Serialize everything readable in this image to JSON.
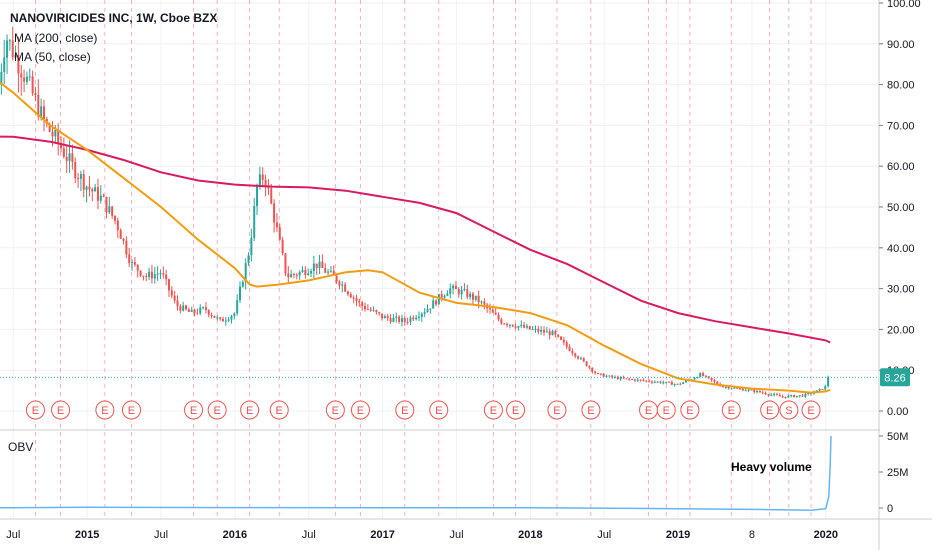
{
  "header": {
    "symbol_line": "NANOVIRICIDES INC, 1W, Cboe BZX",
    "ma200_label": "MA (200, close)",
    "ma50_label": "MA (50, close)"
  },
  "obv_panel": {
    "label": "OBV",
    "annotation": "Heavy volume"
  },
  "price_badge": {
    "value": "8.26"
  },
  "event_marker_letters": {
    "earnings": "E",
    "split": "S"
  },
  "colors": {
    "ma200": "#d81b60",
    "ma50": "#f39c12",
    "candle_up": "#26a69a",
    "candle_down": "#ef5350",
    "obv": "#64b5f6",
    "badge": "#26a69a",
    "event": "#ef5350"
  },
  "chart_data": {
    "type": "candlestick",
    "title": "NANOVIRICIDES INC, 1W, Cboe BZX",
    "x_tick_labels": [
      "Jul",
      "2015",
      "Jul",
      "2016",
      "Jul",
      "2017",
      "Jul",
      "2018",
      "Jul",
      "2019",
      "8",
      "2020"
    ],
    "price_axis": {
      "ticks": [
        "100.00",
        "90.00",
        "80.00",
        "70.00",
        "60.00",
        "50.00",
        "40.00",
        "30.00",
        "20.00",
        "10.00",
        "0.00"
      ],
      "ylim": [
        0,
        100
      ]
    },
    "obv_axis": {
      "ticks": [
        "50M",
        "25M",
        "0"
      ],
      "ylim": [
        -5,
        52
      ]
    },
    "price_path": [
      [
        2014.4,
        80
      ],
      [
        2014.45,
        92
      ],
      [
        2014.5,
        88
      ],
      [
        2014.58,
        82
      ],
      [
        2014.65,
        76
      ],
      [
        2014.72,
        70
      ],
      [
        2014.8,
        66
      ],
      [
        2014.9,
        60
      ],
      [
        2015.0,
        55
      ],
      [
        2015.1,
        52
      ],
      [
        2015.2,
        46
      ],
      [
        2015.3,
        36
      ],
      [
        2015.4,
        33
      ],
      [
        2015.5,
        34
      ],
      [
        2015.6,
        26
      ],
      [
        2015.7,
        24
      ],
      [
        2015.8,
        25
      ],
      [
        2015.9,
        22
      ],
      [
        2016.0,
        24
      ],
      [
        2016.1,
        40
      ],
      [
        2016.15,
        55
      ],
      [
        2016.2,
        58
      ],
      [
        2016.28,
        45
      ],
      [
        2016.35,
        33
      ],
      [
        2016.45,
        34
      ],
      [
        2016.55,
        36
      ],
      [
        2016.7,
        32
      ],
      [
        2016.85,
        26
      ],
      [
        2017.0,
        23
      ],
      [
        2017.15,
        22
      ],
      [
        2017.3,
        25
      ],
      [
        2017.45,
        30
      ],
      [
        2017.55,
        29
      ],
      [
        2017.65,
        27
      ],
      [
        2017.8,
        22
      ],
      [
        2018.0,
        20
      ],
      [
        2018.15,
        19
      ],
      [
        2018.3,
        14
      ],
      [
        2018.45,
        9
      ],
      [
        2018.6,
        8
      ],
      [
        2018.75,
        7.5
      ],
      [
        2018.9,
        7
      ],
      [
        2019.0,
        6.5
      ],
      [
        2019.1,
        8
      ],
      [
        2019.15,
        9
      ],
      [
        2019.3,
        6
      ],
      [
        2019.5,
        5
      ],
      [
        2019.7,
        3.5
      ],
      [
        2019.85,
        3.8
      ],
      [
        2019.95,
        5
      ],
      [
        2020.0,
        6
      ],
      [
        2020.02,
        8.26
      ]
    ],
    "series": [
      {
        "name": "MA (200, close)",
        "points": [
          [
            2014.0,
            67.5
          ],
          [
            2014.5,
            67.2
          ],
          [
            2014.75,
            66
          ],
          [
            2015.0,
            64
          ],
          [
            2015.25,
            61.5
          ],
          [
            2015.5,
            58.5
          ],
          [
            2015.75,
            56.5
          ],
          [
            2016.0,
            55.5
          ],
          [
            2016.25,
            55
          ],
          [
            2016.5,
            54.8
          ],
          [
            2016.75,
            54
          ],
          [
            2017.0,
            52.5
          ],
          [
            2017.25,
            51
          ],
          [
            2017.5,
            48.5
          ],
          [
            2017.75,
            44
          ],
          [
            2018.0,
            39.5
          ],
          [
            2018.25,
            36
          ],
          [
            2018.5,
            31.5
          ],
          [
            2018.75,
            27
          ],
          [
            2019.0,
            24
          ],
          [
            2019.25,
            22
          ],
          [
            2019.5,
            20.5
          ],
          [
            2019.75,
            19
          ],
          [
            2020.0,
            17.3
          ],
          [
            2020.03,
            16.8
          ]
        ]
      },
      {
        "name": "MA (50, close)",
        "points": [
          [
            2014.0,
            88
          ],
          [
            2014.25,
            85
          ],
          [
            2014.5,
            78
          ],
          [
            2014.75,
            70
          ],
          [
            2015.0,
            64
          ],
          [
            2015.25,
            57
          ],
          [
            2015.5,
            50
          ],
          [
            2015.75,
            42
          ],
          [
            2016.0,
            35
          ],
          [
            2016.1,
            31
          ],
          [
            2016.15,
            30.5
          ],
          [
            2016.3,
            31
          ],
          [
            2016.5,
            32
          ],
          [
            2016.75,
            34
          ],
          [
            2016.9,
            34.5
          ],
          [
            2017.0,
            34
          ],
          [
            2017.25,
            29
          ],
          [
            2017.5,
            26.5
          ],
          [
            2017.75,
            25.5
          ],
          [
            2018.0,
            24
          ],
          [
            2018.25,
            21
          ],
          [
            2018.5,
            16
          ],
          [
            2018.75,
            11.5
          ],
          [
            2019.0,
            8
          ],
          [
            2019.25,
            6.5
          ],
          [
            2019.5,
            5.5
          ],
          [
            2019.75,
            5
          ],
          [
            2019.9,
            4.5
          ],
          [
            2020.0,
            4.8
          ],
          [
            2020.03,
            5.2
          ]
        ]
      }
    ],
    "obv": [
      [
        2014.0,
        0
      ],
      [
        2014.5,
        0.2
      ],
      [
        2015.0,
        0.5
      ],
      [
        2016.0,
        0.3
      ],
      [
        2017.0,
        0.2
      ],
      [
        2018.0,
        0.2
      ],
      [
        2019.0,
        -0.5
      ],
      [
        2019.5,
        -1
      ],
      [
        2019.9,
        -1.5
      ],
      [
        2020.0,
        -0.5
      ],
      [
        2020.02,
        8
      ],
      [
        2020.03,
        30
      ],
      [
        2020.035,
        50
      ]
    ],
    "earnings_dates": [
      2014.65,
      2014.82,
      2015.12,
      2015.3,
      2015.72,
      2015.88,
      2016.1,
      2016.3,
      2016.68,
      2016.85,
      2017.15,
      2017.38,
      2017.75,
      2017.9,
      2018.18,
      2018.41,
      2018.8,
      2018.92,
      2019.08,
      2019.36,
      2019.62,
      2019.9
    ],
    "split_dates": [
      2019.75
    ]
  }
}
